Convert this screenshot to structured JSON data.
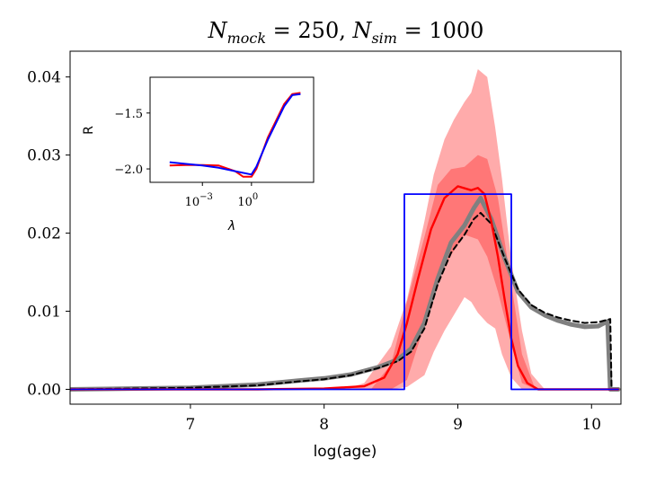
{
  "chart_data": {
    "type": "line",
    "title": "N_mock = 250, N_sim = 1000",
    "title_parts": {
      "n1": "N",
      "s1": "mock",
      "eq1": " = 250, ",
      "n2": "N",
      "s2": "sim",
      "eq2": " = 1000"
    },
    "xlabel": "log(age)",
    "ylabel": "",
    "xlim": [
      6.1,
      10.22
    ],
    "ylim": [
      -0.0019,
      0.0433
    ],
    "xticks": [
      7,
      8,
      9,
      10
    ],
    "xtick_labels": [
      "7",
      "8",
      "9",
      "10"
    ],
    "yticks": [
      0.0,
      0.01,
      0.02,
      0.03,
      0.04
    ],
    "ytick_labels": [
      "0.00",
      "0.01",
      "0.02",
      "0.03",
      "0.04"
    ],
    "series": [
      {
        "name": "outer-band",
        "kind": "band",
        "color": "#ff0000",
        "alpha": 0.33,
        "x": [
          8.15,
          8.3,
          8.5,
          8.62,
          8.75,
          8.82,
          8.9,
          8.97,
          9.05,
          9.1,
          9.15,
          9.22,
          9.28,
          9.33,
          9.4,
          9.48,
          9.55,
          9.65
        ],
        "upper": [
          0.0,
          0.0008,
          0.0055,
          0.0115,
          0.0215,
          0.0275,
          0.032,
          0.0345,
          0.0368,
          0.038,
          0.041,
          0.04,
          0.0335,
          0.027,
          0.0165,
          0.0075,
          0.002,
          0.0
        ],
        "lower": [
          0.0,
          0.0,
          0.0,
          0.0003,
          0.0018,
          0.0048,
          0.0075,
          0.0095,
          0.0118,
          0.0112,
          0.0098,
          0.0085,
          0.0078,
          0.0045,
          0.0015,
          0.0,
          0.0,
          0.0
        ]
      },
      {
        "name": "inner-band",
        "kind": "band",
        "color": "#ff0000",
        "alpha": 0.3,
        "x": [
          8.35,
          8.5,
          8.62,
          8.75,
          8.85,
          8.95,
          9.05,
          9.15,
          9.22,
          9.3,
          9.4,
          9.48,
          9.58
        ],
        "upper": [
          0.0,
          0.0032,
          0.0112,
          0.0195,
          0.0262,
          0.0282,
          0.0285,
          0.03,
          0.0295,
          0.0245,
          0.0135,
          0.0045,
          0.0
        ],
        "lower": [
          0.0,
          0.0,
          0.0012,
          0.0082,
          0.0142,
          0.0172,
          0.0198,
          0.0192,
          0.017,
          0.0125,
          0.0058,
          0.0008,
          0.0
        ]
      },
      {
        "name": "gray-samples",
        "kind": "line",
        "color": "#808080",
        "width": 5,
        "x": [
          6.1,
          7.0,
          7.5,
          7.8,
          8.0,
          8.2,
          8.4,
          8.55,
          8.65,
          8.75,
          8.85,
          8.95,
          9.05,
          9.12,
          9.17,
          9.25,
          9.35,
          9.45,
          9.55,
          9.65,
          9.75,
          9.85,
          9.95,
          10.05,
          10.12,
          10.14,
          10.2
        ],
        "y": [
          0.0,
          0.0002,
          0.0006,
          0.0011,
          0.0014,
          0.0019,
          0.0028,
          0.0038,
          0.0052,
          0.0085,
          0.0142,
          0.0188,
          0.021,
          0.0232,
          0.0245,
          0.0218,
          0.0168,
          0.0125,
          0.0105,
          0.0095,
          0.0088,
          0.0083,
          0.008,
          0.0081,
          0.0087,
          0.0,
          0.0
        ]
      },
      {
        "name": "black-dashed",
        "kind": "line",
        "color": "#000000",
        "width": 2,
        "dash": "6,4",
        "x": [
          6.1,
          7.0,
          7.5,
          7.8,
          8.0,
          8.2,
          8.4,
          8.55,
          8.65,
          8.75,
          8.85,
          8.95,
          9.05,
          9.12,
          9.17,
          9.25,
          9.35,
          9.45,
          9.55,
          9.65,
          9.75,
          9.85,
          9.95,
          10.05,
          10.14,
          10.15,
          10.2
        ],
        "y": [
          0.0,
          0.0002,
          0.0005,
          0.001,
          0.0013,
          0.0018,
          0.0027,
          0.0036,
          0.0048,
          0.0078,
          0.0135,
          0.0175,
          0.0198,
          0.0218,
          0.0226,
          0.0212,
          0.0168,
          0.0128,
          0.0108,
          0.0098,
          0.0092,
          0.0088,
          0.0085,
          0.0086,
          0.009,
          0.0,
          0.0
        ]
      },
      {
        "name": "red-median",
        "kind": "line",
        "color": "#ff0000",
        "width": 2.4,
        "x": [
          6.1,
          7.5,
          8.0,
          8.3,
          8.45,
          8.55,
          8.62,
          8.7,
          8.8,
          8.9,
          9.0,
          9.1,
          9.15,
          9.2,
          9.25,
          9.3,
          9.35,
          9.4,
          9.45,
          9.52,
          9.6,
          10.2
        ],
        "y": [
          0.0,
          0.0,
          0.0001,
          0.0004,
          0.0015,
          0.0045,
          0.0085,
          0.014,
          0.0205,
          0.0245,
          0.026,
          0.0255,
          0.0258,
          0.025,
          0.0215,
          0.017,
          0.0115,
          0.0065,
          0.003,
          0.0008,
          0.0,
          0.0
        ]
      },
      {
        "name": "blue-step",
        "kind": "line",
        "color": "#0000ff",
        "width": 1.8,
        "x": [
          6.1,
          8.6,
          8.6,
          9.4,
          9.4,
          10.2
        ],
        "y": [
          0.0,
          0.0,
          0.025,
          0.025,
          0.0,
          0.0
        ]
      }
    ],
    "inset": {
      "type": "line",
      "xlabel": "λ",
      "ylabel": "R",
      "xscale": "log",
      "xlim_log10": [
        -6.2,
        3.8
      ],
      "ylim": [
        -2.12,
        -1.18
      ],
      "xticks_log10": [
        -3,
        0
      ],
      "xtick_labels": [
        {
          "base": "10",
          "exp": "−3"
        },
        {
          "base": "10",
          "exp": "0"
        }
      ],
      "yticks": [
        -2.0,
        -1.5
      ],
      "ytick_labels": [
        "−2.0",
        "−1.5"
      ],
      "series": [
        {
          "name": "inset-red",
          "color": "#ff0000",
          "x_log10": [
            -5.0,
            -4.0,
            -3.0,
            -2.0,
            -1.0,
            -0.5,
            0.0,
            0.3,
            1.0,
            2.0,
            2.5,
            3.0
          ],
          "y": [
            -1.97,
            -1.965,
            -1.965,
            -1.97,
            -2.02,
            -2.07,
            -2.07,
            -2.0,
            -1.72,
            -1.42,
            -1.33,
            -1.32
          ]
        },
        {
          "name": "inset-blue",
          "color": "#0000ff",
          "x_log10": [
            -5.0,
            -4.0,
            -3.0,
            -2.0,
            -1.0,
            0.0,
            0.3,
            1.0,
            2.0,
            2.5,
            3.0
          ],
          "y": [
            -1.94,
            -1.955,
            -1.97,
            -1.99,
            -2.02,
            -2.05,
            -1.98,
            -1.74,
            -1.44,
            -1.34,
            -1.33
          ]
        }
      ]
    }
  }
}
